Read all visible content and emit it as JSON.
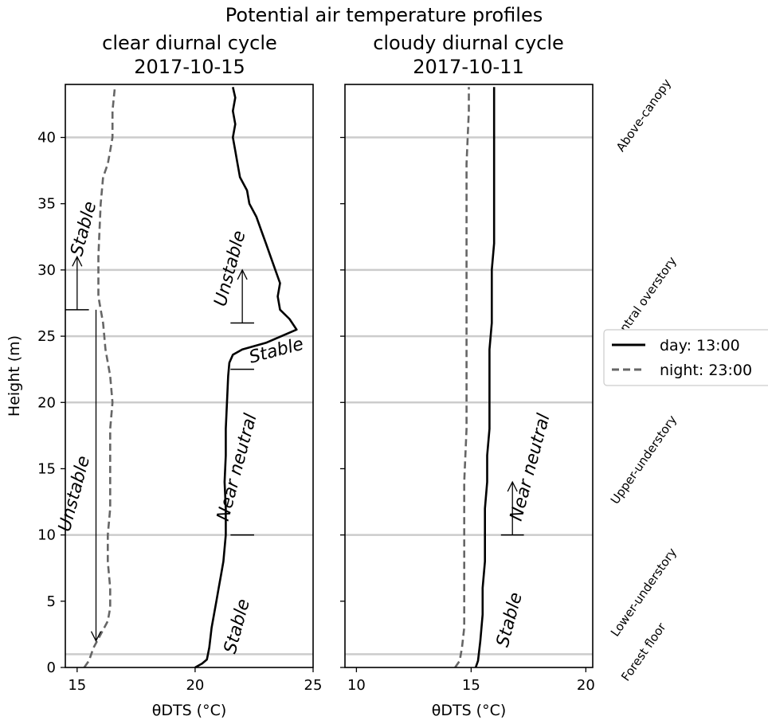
{
  "chart_data": {
    "type": "line",
    "title": "Potential air temperature profiles",
    "ylabel": "Height (m)",
    "ylim": [
      0,
      44
    ],
    "yticks": [
      0,
      5,
      10,
      15,
      20,
      25,
      30,
      35,
      40
    ],
    "grid": "horizontal lines at 1, 10, 20, 25, 30, 40",
    "legend": {
      "placement": "right, outside panels",
      "entries": [
        {
          "label": "day: 13:00",
          "color": "#000000",
          "dash": "solid"
        },
        {
          "label": "night: 23:00",
          "color": "#666666",
          "dash": "dashed"
        }
      ]
    },
    "zones": [
      {
        "label": "Forest floor",
        "y": 1
      },
      {
        "label": "Lower-understory",
        "y": 5.5
      },
      {
        "label": "Upper-understory",
        "y": 15.5
      },
      {
        "label": "Central overstory",
        "y": 27.5
      },
      {
        "label": "Above-canopy",
        "y": 41.5
      }
    ],
    "panels": [
      {
        "subtitle_line1": "clear diurnal cycle",
        "subtitle_line2": "2017-10-15",
        "xlabel": "θDTS (°C)",
        "xlim": [
          14.5,
          25
        ],
        "xticks": [
          15,
          20,
          25
        ],
        "series": [
          {
            "name": "day: 13:00",
            "points": [
              [
                20.0,
                0
              ],
              [
                20.3,
                0.3
              ],
              [
                20.5,
                0.6
              ],
              [
                20.6,
                1.5
              ],
              [
                20.7,
                3
              ],
              [
                20.8,
                4
              ],
              [
                20.9,
                5
              ],
              [
                21.0,
                6
              ],
              [
                21.1,
                7
              ],
              [
                21.2,
                8
              ],
              [
                21.3,
                10
              ],
              [
                21.3,
                12
              ],
              [
                21.25,
                14
              ],
              [
                21.3,
                16
              ],
              [
                21.3,
                18
              ],
              [
                21.35,
                20
              ],
              [
                21.4,
                22
              ],
              [
                21.45,
                23
              ],
              [
                21.6,
                23.6
              ],
              [
                22.0,
                24.0
              ],
              [
                23.0,
                24.5
              ],
              [
                24.3,
                25.5
              ],
              [
                24.0,
                26.3
              ],
              [
                23.6,
                27
              ],
              [
                23.5,
                28
              ],
              [
                23.6,
                29
              ],
              [
                23.4,
                30
              ],
              [
                23.2,
                31
              ],
              [
                23.0,
                32
              ],
              [
                22.8,
                33
              ],
              [
                22.6,
                34
              ],
              [
                22.3,
                35
              ],
              [
                22.2,
                36
              ],
              [
                21.9,
                37
              ],
              [
                21.8,
                38
              ],
              [
                21.7,
                39
              ],
              [
                21.6,
                40
              ],
              [
                21.7,
                41
              ],
              [
                21.6,
                42
              ],
              [
                21.7,
                43
              ],
              [
                21.6,
                43.8
              ]
            ]
          },
          {
            "name": "night: 23:00",
            "points": [
              [
                15.3,
                0
              ],
              [
                15.5,
                0.5
              ],
              [
                15.7,
                1.5
              ],
              [
                16.0,
                2.5
              ],
              [
                16.3,
                3.5
              ],
              [
                16.4,
                4.5
              ],
              [
                16.4,
                6
              ],
              [
                16.3,
                8
              ],
              [
                16.3,
                10
              ],
              [
                16.4,
                12
              ],
              [
                16.4,
                14
              ],
              [
                16.4,
                16
              ],
              [
                16.4,
                18
              ],
              [
                16.5,
                20
              ],
              [
                16.4,
                22
              ],
              [
                16.2,
                24
              ],
              [
                16.1,
                26
              ],
              [
                16.0,
                27
              ],
              [
                15.9,
                28
              ],
              [
                15.9,
                30
              ],
              [
                15.9,
                31
              ],
              [
                15.95,
                33
              ],
              [
                16.0,
                35
              ],
              [
                16.1,
                37
              ],
              [
                16.3,
                38
              ],
              [
                16.4,
                39
              ],
              [
                16.5,
                40
              ],
              [
                16.5,
                42
              ],
              [
                16.6,
                43.8
              ]
            ]
          }
        ],
        "annotations": [
          {
            "text": "Stable",
            "x": 15.5,
            "y": 33
          },
          {
            "text": "Unstable",
            "x": 15.1,
            "y": 13
          },
          {
            "text": "Unstable",
            "x": 21.7,
            "y": 30
          },
          {
            "text": "Stable",
            "x": 23.5,
            "y": 23.5
          },
          {
            "text": "Near neutral",
            "x": 22.0,
            "y": 15
          },
          {
            "text": "Stable",
            "x": 22.0,
            "y": 3
          }
        ]
      },
      {
        "subtitle_line1": "cloudy diurnal cycle",
        "subtitle_line2": "2017-10-11",
        "xlabel": "θDTS (°C)",
        "xlim": [
          9.5,
          20.3
        ],
        "xticks": [
          10,
          15,
          20
        ],
        "series": [
          {
            "name": "day: 13:00",
            "points": [
              [
                15.2,
                0
              ],
              [
                15.3,
                0.5
              ],
              [
                15.4,
                2
              ],
              [
                15.5,
                4
              ],
              [
                15.5,
                6
              ],
              [
                15.6,
                8
              ],
              [
                15.6,
                10
              ],
              [
                15.6,
                12
              ],
              [
                15.7,
                14
              ],
              [
                15.7,
                16
              ],
              [
                15.8,
                18
              ],
              [
                15.8,
                20
              ],
              [
                15.8,
                22
              ],
              [
                15.8,
                24
              ],
              [
                15.9,
                26
              ],
              [
                15.9,
                28
              ],
              [
                15.9,
                30
              ],
              [
                16.0,
                32
              ],
              [
                16.0,
                34
              ],
              [
                16.0,
                36
              ],
              [
                16.0,
                38
              ],
              [
                16.0,
                40
              ],
              [
                16.0,
                42
              ],
              [
                16.0,
                43.8
              ]
            ]
          },
          {
            "name": "night: 23:00",
            "points": [
              [
                14.3,
                0
              ],
              [
                14.5,
                0.5
              ],
              [
                14.6,
                1.5
              ],
              [
                14.7,
                3
              ],
              [
                14.7,
                6
              ],
              [
                14.7,
                10
              ],
              [
                14.7,
                14
              ],
              [
                14.8,
                18
              ],
              [
                14.8,
                22
              ],
              [
                14.8,
                26
              ],
              [
                14.8,
                30
              ],
              [
                14.8,
                34
              ],
              [
                14.8,
                38
              ],
              [
                14.9,
                42
              ],
              [
                14.9,
                43.8
              ]
            ]
          }
        ],
        "annotations": [
          {
            "text": "Near neutral",
            "x": 17.8,
            "y": 15
          },
          {
            "text": "Stable",
            "x": 16.9,
            "y": 3.5
          }
        ]
      }
    ]
  }
}
